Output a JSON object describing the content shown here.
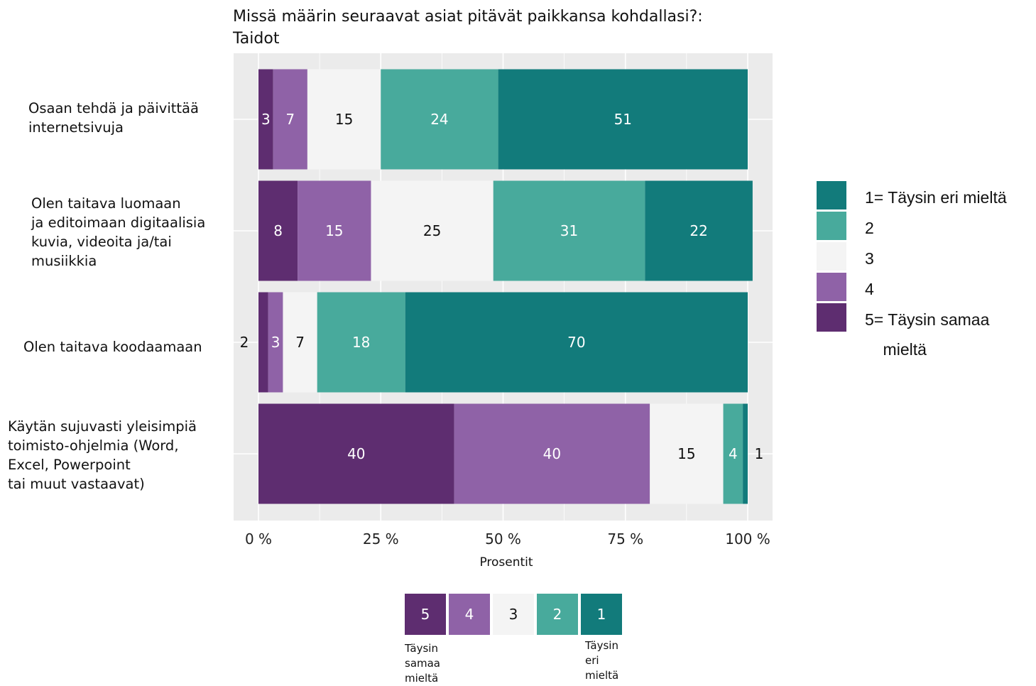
{
  "chart_data": {
    "type": "bar",
    "orientation": "horizontal",
    "stacked": true,
    "title": "Missä määrin seuraavat asiat pitävät paikkansa kohdallasi?:\nTaidot",
    "xlabel": "Prosentit",
    "ylabel": "",
    "xlim": [
      0,
      100
    ],
    "x_ticks": [
      "0 %",
      "25 %",
      "50 %",
      "75 %",
      "100 %"
    ],
    "categories": [
      "Osaan tehdä ja päivittää\ninternetsivuja",
      "Olen taitava luomaan\nja editoimaan digitaalisia\nkuvia, videoita ja/tai\nmusiikkia",
      "Olen taitava koodaamaan",
      "Käytän sujuvasti yleisimpiä\ntoimisto-ohjelmia (Word,\nExcel, Powerpoint\ntai muut vastaavat)"
    ],
    "series": [
      {
        "name": "5= Täysin samaa\n    mieltä",
        "color": "#5e2d70",
        "values": [
          3,
          8,
          2,
          40
        ]
      },
      {
        "name": "4",
        "color": "#8f62a7",
        "values": [
          7,
          15,
          3,
          40
        ]
      },
      {
        "name": "3",
        "color": "#f4f4f4",
        "values": [
          15,
          25,
          7,
          15
        ]
      },
      {
        "name": "2",
        "color": "#48aa9c",
        "values": [
          24,
          31,
          18,
          4
        ]
      },
      {
        "name": "1= Täysin eri mieltä",
        "color": "#127b7b",
        "values": [
          51,
          22,
          70,
          1
        ]
      }
    ],
    "grid": true,
    "legend_position": "right"
  },
  "scale": {
    "items": [
      {
        "label": "5",
        "color": "#5e2d70",
        "text_color": "#ffffff"
      },
      {
        "label": "4",
        "color": "#8f62a7",
        "text_color": "#ffffff"
      },
      {
        "label": "3",
        "color": "#f4f4f4",
        "text_color": "#111111"
      },
      {
        "label": "2",
        "color": "#48aa9c",
        "text_color": "#ffffff"
      },
      {
        "label": "1",
        "color": "#127b7b",
        "text_color": "#ffffff"
      }
    ],
    "left_note": "Täysin\nsamaa\nmieltä",
    "right_note": "Täysin\neri\nmieltä"
  }
}
